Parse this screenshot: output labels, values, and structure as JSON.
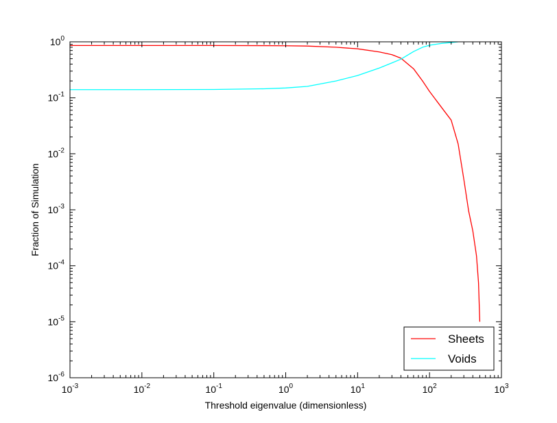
{
  "chart_data": {
    "type": "line",
    "title": "",
    "xlabel": "Threshold eigenvalue (dimensionless)",
    "ylabel": "Fraction of Simulation",
    "xscale": "log",
    "yscale": "log",
    "xlim": [
      0.001,
      1000
    ],
    "ylim": [
      1e-06,
      1
    ],
    "grid": false,
    "legend_position": "lower-right",
    "xticks": [
      {
        "value": 0.001,
        "base": "10",
        "exp": "-3"
      },
      {
        "value": 0.01,
        "base": "10",
        "exp": "-2"
      },
      {
        "value": 0.1,
        "base": "10",
        "exp": "-1"
      },
      {
        "value": 1,
        "base": "10",
        "exp": "0"
      },
      {
        "value": 10,
        "base": "10",
        "exp": "1"
      },
      {
        "value": 100,
        "base": "10",
        "exp": "2"
      },
      {
        "value": 1000,
        "base": "10",
        "exp": "3"
      }
    ],
    "yticks": [
      {
        "value": 1e-06,
        "base": "10",
        "exp": "-6"
      },
      {
        "value": 1e-05,
        "base": "10",
        "exp": "-5"
      },
      {
        "value": 0.0001,
        "base": "10",
        "exp": "-4"
      },
      {
        "value": 0.001,
        "base": "10",
        "exp": "-3"
      },
      {
        "value": 0.01,
        "base": "10",
        "exp": "-2"
      },
      {
        "value": 0.1,
        "base": "10",
        "exp": "-1"
      },
      {
        "value": 1,
        "base": "10",
        "exp": "0"
      }
    ],
    "series": [
      {
        "name": "Sheets",
        "color": "#ff0000",
        "x": [
          0.001,
          0.01,
          0.1,
          0.5,
          1,
          2,
          5,
          10,
          20,
          30,
          40,
          60,
          80,
          100,
          150,
          200,
          250,
          300,
          350,
          400,
          450,
          480,
          500
        ],
        "y": [
          0.86,
          0.86,
          0.86,
          0.855,
          0.85,
          0.84,
          0.8,
          0.75,
          0.66,
          0.59,
          0.51,
          0.33,
          0.2,
          0.13,
          0.065,
          0.04,
          0.015,
          0.0035,
          0.00095,
          0.00042,
          0.00015,
          5e-05,
          1e-05
        ]
      },
      {
        "name": "Voids",
        "color": "#00ffff",
        "x": [
          0.001,
          0.01,
          0.1,
          0.5,
          1,
          2,
          5,
          10,
          20,
          30,
          40,
          60,
          80,
          100,
          150,
          200,
          250
        ],
        "y": [
          0.14,
          0.14,
          0.141,
          0.145,
          0.15,
          0.16,
          0.2,
          0.25,
          0.34,
          0.42,
          0.49,
          0.67,
          0.8,
          0.87,
          0.94,
          0.97,
          1.0
        ]
      }
    ]
  }
}
